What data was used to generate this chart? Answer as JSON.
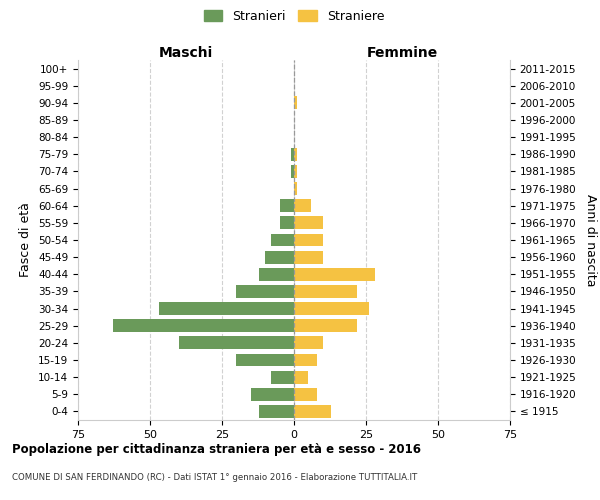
{
  "age_groups": [
    "100+",
    "95-99",
    "90-94",
    "85-89",
    "80-84",
    "75-79",
    "70-74",
    "65-69",
    "60-64",
    "55-59",
    "50-54",
    "45-49",
    "40-44",
    "35-39",
    "30-34",
    "25-29",
    "20-24",
    "15-19",
    "10-14",
    "5-9",
    "0-4"
  ],
  "birth_years": [
    "≤ 1915",
    "1916-1920",
    "1921-1925",
    "1926-1930",
    "1931-1935",
    "1936-1940",
    "1941-1945",
    "1946-1950",
    "1951-1955",
    "1956-1960",
    "1961-1965",
    "1966-1970",
    "1971-1975",
    "1976-1980",
    "1981-1985",
    "1986-1990",
    "1991-1995",
    "1996-2000",
    "2001-2005",
    "2006-2010",
    "2011-2015"
  ],
  "maschi": [
    0,
    0,
    0,
    0,
    0,
    1,
    1,
    0,
    5,
    5,
    8,
    10,
    12,
    20,
    47,
    63,
    40,
    20,
    8,
    15,
    12
  ],
  "femmine": [
    0,
    0,
    1,
    0,
    0,
    1,
    1,
    1,
    6,
    10,
    10,
    10,
    28,
    22,
    26,
    22,
    10,
    8,
    5,
    8,
    13
  ],
  "color_maschi": "#6a9a5a",
  "color_femmine": "#f5c242",
  "xlim": 75,
  "title": "Popolazione per cittadinanza straniera per età e sesso - 2016",
  "subtitle": "COMUNE DI SAN FERDINANDO (RC) - Dati ISTAT 1° gennaio 2016 - Elaborazione TUTTITALIA.IT",
  "xlabel_left": "Maschi",
  "xlabel_right": "Femmine",
  "ylabel_left": "Fasce di età",
  "ylabel_right": "Anni di nascita",
  "legend_maschi": "Stranieri",
  "legend_femmine": "Straniere",
  "bg_color": "#ffffff",
  "grid_color": "#cccccc"
}
